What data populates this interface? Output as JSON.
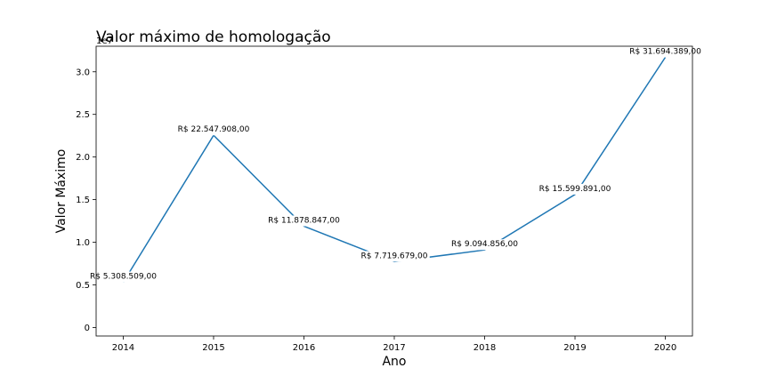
{
  "chart_data": {
    "type": "line",
    "title": "Valor máximo de homologação",
    "xlabel": "Ano",
    "ylabel": "Valor Máximo",
    "y_offset_label": "1e7",
    "x": [
      2014,
      2015,
      2016,
      2017,
      2018,
      2019,
      2020
    ],
    "values": [
      5308509,
      22547908,
      11878847,
      7719679,
      9094856,
      15599891,
      31694389
    ],
    "data_labels": [
      "R$ 5.308.509,00",
      "R$ 22.547.908,00",
      "R$ 11.878.847,00",
      "R$ 7.719.679,00",
      "R$ 9.094.856,00",
      "R$ 15.599.891,00",
      "R$ 31.694.389,00"
    ],
    "x_ticks": [
      "2014",
      "2015",
      "2016",
      "2017",
      "2018",
      "2019",
      "2020"
    ],
    "y_ticks": [
      0.0,
      0.5,
      1.0,
      1.5,
      2.0,
      2.5,
      3.0
    ],
    "y_tick_labels": [
      "0",
      "0.5",
      "1.0",
      "1.5",
      "2.0",
      "2.5",
      "3.0"
    ],
    "ylim": [
      -1000000,
      33000000
    ],
    "xlim": [
      2013.7,
      2020.3
    ],
    "grid": false,
    "line_color": "#1f77b4"
  }
}
